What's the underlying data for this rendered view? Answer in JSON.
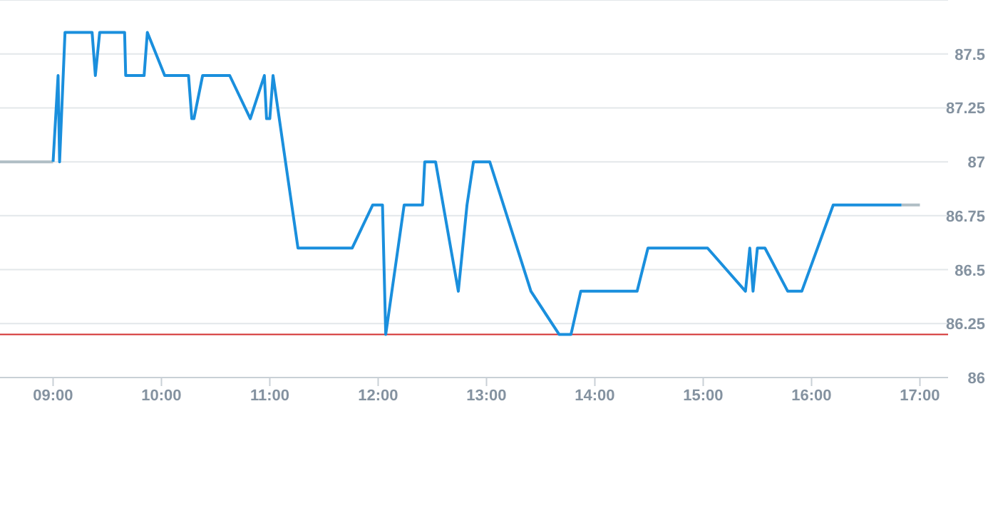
{
  "chart_data": {
    "type": "line",
    "xlim": [
      8.51,
      17.26
    ],
    "ylim": [
      86,
      87.75
    ],
    "xticks": [
      {
        "value": 9,
        "label": "09:00"
      },
      {
        "value": 10,
        "label": "10:00"
      },
      {
        "value": 11,
        "label": "11:00"
      },
      {
        "value": 12,
        "label": "12:00"
      },
      {
        "value": 13,
        "label": "13:00"
      },
      {
        "value": 14,
        "label": "14:00"
      },
      {
        "value": 15,
        "label": "15:00"
      },
      {
        "value": 16,
        "label": "16:00"
      },
      {
        "value": 17,
        "label": "17:00"
      }
    ],
    "yticks": [
      86,
      86.25,
      86.5,
      86.75,
      87,
      87.25,
      87.5
    ],
    "grid": "y",
    "marker": "none",
    "line_style": "solid",
    "ref_lines": [
      {
        "axis": "y",
        "value": 86.2,
        "color": "#d32f2f"
      }
    ],
    "series": [
      {
        "color": "#b0bec5",
        "x": [
          8.51,
          9.0
        ],
        "values": [
          87.0,
          87.0
        ]
      },
      {
        "color": "#b0bec5",
        "x": [
          16.83,
          17.0
        ],
        "values": [
          86.8,
          86.8
        ]
      },
      {
        "color": "#1a8fdd",
        "x": [
          9.0,
          9.046,
          9.06,
          9.11,
          9.36,
          9.39,
          9.43,
          9.66,
          9.67,
          9.84,
          9.87,
          10.03,
          10.25,
          10.28,
          10.3,
          10.38,
          10.63,
          10.82,
          10.95,
          10.97,
          11.0,
          11.03,
          11.26,
          11.76,
          11.95,
          12.04,
          12.07,
          12.24,
          12.41,
          12.43,
          12.53,
          12.74,
          12.82,
          12.88,
          13.03,
          13.41,
          13.67,
          13.78,
          13.87,
          14.39,
          14.49,
          15.04,
          15.39,
          15.43,
          15.46,
          15.5,
          15.57,
          15.78,
          15.91,
          16.2,
          16.83
        ],
        "values": [
          87.0,
          87.4,
          87.0,
          87.6,
          87.6,
          87.4,
          87.6,
          87.6,
          87.4,
          87.4,
          87.6,
          87.4,
          87.4,
          87.2,
          87.2,
          87.4,
          87.4,
          87.2,
          87.4,
          87.2,
          87.2,
          87.4,
          86.6,
          86.6,
          86.8,
          86.8,
          86.2,
          86.8,
          86.8,
          87.0,
          87.0,
          86.4,
          86.8,
          87.0,
          87.0,
          86.4,
          86.2,
          86.2,
          86.4,
          86.4,
          86.6,
          86.6,
          86.4,
          86.6,
          86.4,
          86.6,
          86.6,
          86.4,
          86.4,
          86.8,
          86.8
        ]
      }
    ]
  }
}
